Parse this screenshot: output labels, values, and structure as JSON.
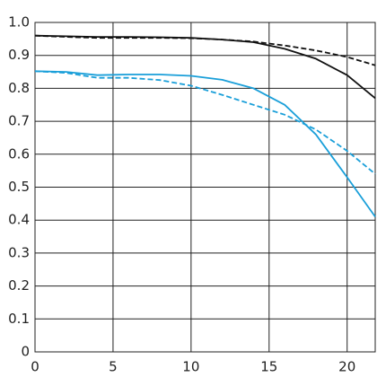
{
  "chart_data": {
    "type": "line",
    "x": [
      0,
      2,
      4,
      6,
      8,
      10,
      12,
      14,
      16,
      18,
      20,
      21.8
    ],
    "series": [
      {
        "color": "#111111",
        "dash": false,
        "values": [
          0.96,
          0.958,
          0.956,
          0.956,
          0.955,
          0.953,
          0.948,
          0.94,
          0.92,
          0.89,
          0.84,
          0.77
        ]
      },
      {
        "color": "#111111",
        "dash": true,
        "values": [
          0.96,
          0.956,
          0.953,
          0.953,
          0.953,
          0.952,
          0.948,
          0.942,
          0.93,
          0.915,
          0.895,
          0.87
        ]
      },
      {
        "color": "#1a9fd9",
        "dash": false,
        "values": [
          0.852,
          0.85,
          0.84,
          0.842,
          0.842,
          0.838,
          0.826,
          0.8,
          0.75,
          0.66,
          0.53,
          0.41
        ]
      },
      {
        "color": "#1a9fd9",
        "dash": true,
        "values": [
          0.852,
          0.847,
          0.832,
          0.832,
          0.825,
          0.808,
          0.78,
          0.75,
          0.72,
          0.675,
          0.61,
          0.54
        ]
      }
    ],
    "xlim": [
      0,
      21.8
    ],
    "ylim": [
      0,
      1
    ],
    "xticks": [
      0,
      5,
      10,
      15,
      20
    ],
    "yticks": [
      0,
      0.1,
      0.2,
      0.3,
      0.4,
      0.5,
      0.6,
      0.7,
      0.8,
      0.9,
      {
        "value": 1,
        "label": "1.0"
      }
    ],
    "grid": true
  }
}
